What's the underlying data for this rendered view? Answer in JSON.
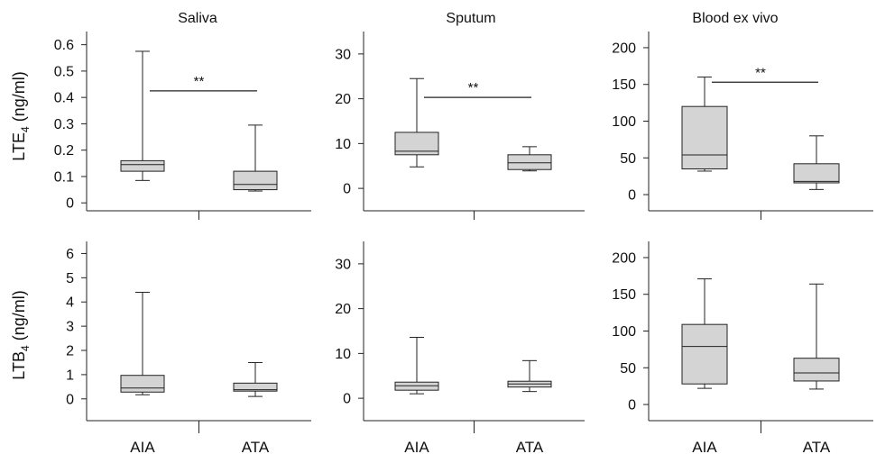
{
  "figure": {
    "columns": [
      "Saliva",
      "Sputum",
      "Blood ex vivo"
    ],
    "categories": [
      "AIA",
      "ATA"
    ],
    "rows": [
      {
        "ylabel_main": "LTE",
        "ylabel_sub": "4",
        "ylabel_unit": " (ng/ml)"
      },
      {
        "ylabel_main": "LTB",
        "ylabel_sub": "4",
        "ylabel_unit": " (ng/ml)"
      }
    ],
    "colors": {
      "box_fill": "#d4d4d4",
      "stroke": "#222222"
    }
  },
  "chart_data": [
    {
      "type": "box",
      "row": 0,
      "col": 0,
      "title": "Saliva",
      "ylabel": "LTE4 (ng/ml)",
      "ylim": [
        -0.03,
        0.65
      ],
      "yticks": [
        0,
        0.1,
        0.2,
        0.3,
        0.4,
        0.5,
        0.6
      ],
      "yticklabels": [
        "0",
        "0.1",
        "0.2",
        "0.3",
        "0.4",
        "0.5",
        "0.6"
      ],
      "categories": [
        "AIA",
        "ATA"
      ],
      "boxes": [
        {
          "category": "AIA",
          "min": 0.085,
          "q1": 0.12,
          "median": 0.145,
          "q3": 0.16,
          "max": 0.575
        },
        {
          "category": "ATA",
          "min": 0.045,
          "q1": 0.05,
          "median": 0.07,
          "q3": 0.12,
          "max": 0.295
        }
      ],
      "significance": {
        "label": "**",
        "y": 0.425
      }
    },
    {
      "type": "box",
      "row": 0,
      "col": 1,
      "title": "Sputum",
      "ylabel": "LTE4 (ng/ml)",
      "ylim": [
        -5,
        35
      ],
      "yticks": [
        0,
        10,
        20,
        30
      ],
      "yticklabels": [
        "0",
        "10",
        "20",
        "30"
      ],
      "categories": [
        "AIA",
        "ATA"
      ],
      "boxes": [
        {
          "category": "AIA",
          "min": 4.8,
          "q1": 7.5,
          "median": 8.3,
          "q3": 12.5,
          "max": 24.5
        },
        {
          "category": "ATA",
          "min": 3.9,
          "q1": 4.2,
          "median": 5.7,
          "q3": 7.5,
          "max": 9.3
        }
      ],
      "significance": {
        "label": "**",
        "y": 20.3
      }
    },
    {
      "type": "box",
      "row": 0,
      "col": 2,
      "title": "Blood ex vivo",
      "ylabel": "LTE4 (ng/ml)",
      "ylim": [
        -22,
        222
      ],
      "yticks": [
        0,
        50,
        100,
        150,
        200
      ],
      "yticklabels": [
        "0",
        "50",
        "100",
        "150",
        "200"
      ],
      "categories": [
        "AIA",
        "ATA"
      ],
      "boxes": [
        {
          "category": "AIA",
          "min": 32,
          "q1": 35,
          "median": 54,
          "q3": 120,
          "max": 160
        },
        {
          "category": "ATA",
          "min": 7,
          "q1": 16,
          "median": 18,
          "q3": 42,
          "max": 80
        }
      ],
      "significance": {
        "label": "**",
        "y": 153
      }
    },
    {
      "type": "box",
      "row": 1,
      "col": 0,
      "title": "Saliva",
      "ylabel": "LTB4 (ng/ml)",
      "ylim": [
        -0.9,
        6.5
      ],
      "yticks": [
        0,
        1,
        2,
        3,
        4,
        5,
        6
      ],
      "yticklabels": [
        "0",
        "1",
        "2",
        "3",
        "4",
        "5",
        "6"
      ],
      "categories": [
        "AIA",
        "ATA"
      ],
      "boxes": [
        {
          "category": "AIA",
          "min": 0.17,
          "q1": 0.28,
          "median": 0.45,
          "q3": 0.97,
          "max": 4.4
        },
        {
          "category": "ATA",
          "min": 0.1,
          "q1": 0.32,
          "median": 0.38,
          "q3": 0.65,
          "max": 1.5
        }
      ],
      "significance": null
    },
    {
      "type": "box",
      "row": 1,
      "col": 1,
      "title": "Sputum",
      "ylabel": "LTB4 (ng/ml)",
      "ylim": [
        -5,
        35
      ],
      "yticks": [
        0,
        10,
        20,
        30
      ],
      "yticklabels": [
        "0",
        "10",
        "20",
        "30"
      ],
      "categories": [
        "AIA",
        "ATA"
      ],
      "boxes": [
        {
          "category": "AIA",
          "min": 1,
          "q1": 1.8,
          "median": 2.8,
          "q3": 3.6,
          "max": 13.6
        },
        {
          "category": "ATA",
          "min": 1.5,
          "q1": 2.5,
          "median": 3.2,
          "q3": 3.8,
          "max": 8.4
        }
      ],
      "significance": null
    },
    {
      "type": "box",
      "row": 1,
      "col": 2,
      "title": "Blood ex vivo",
      "ylabel": "LTB4 (ng/ml)",
      "ylim": [
        -22,
        222
      ],
      "yticks": [
        0,
        50,
        100,
        150,
        200
      ],
      "yticklabels": [
        "0",
        "50",
        "100",
        "150",
        "200"
      ],
      "categories": [
        "AIA",
        "ATA"
      ],
      "boxes": [
        {
          "category": "AIA",
          "min": 22,
          "q1": 28,
          "median": 79,
          "q3": 109,
          "max": 171
        },
        {
          "category": "ATA",
          "min": 21,
          "q1": 32,
          "median": 43,
          "q3": 63,
          "max": 164
        }
      ],
      "significance": null
    }
  ]
}
